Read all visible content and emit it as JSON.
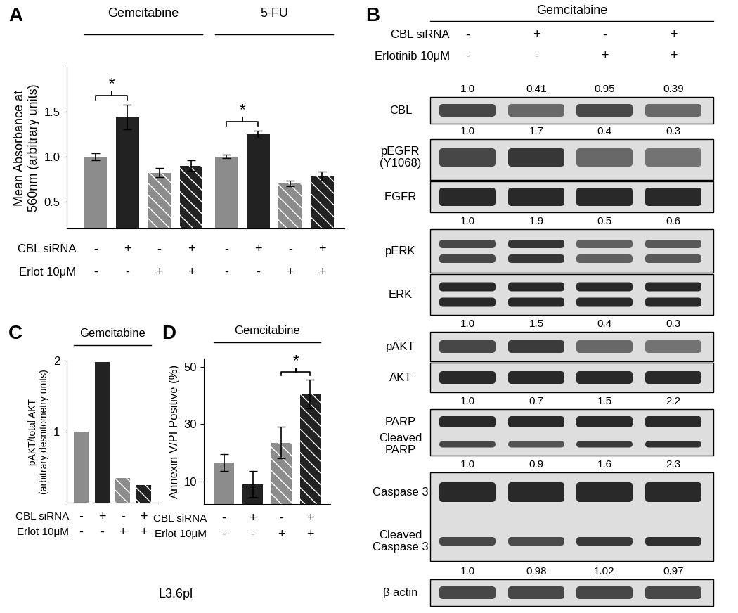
{
  "chart_data": [
    {
      "panel_label": "A",
      "type": "bar",
      "ylabel": "Mean Absorbance at\n560nm (arbitrary units)",
      "ylim": [
        0.2,
        2.0
      ],
      "yticks": [
        0.5,
        {
          "value": 1,
          "label": "1.0"
        },
        1.5
      ],
      "groups": [
        {
          "name": "Gemcitabine",
          "values": [
            1.0,
            1.44,
            0.82,
            0.9
          ],
          "errors": [
            0.04,
            0.14,
            0.05,
            0.06
          ],
          "colors": [
            "#8c8c8c",
            "#222222",
            "#8c8c8c",
            "#222222"
          ],
          "significance": {
            "between": [
              0,
              1
            ],
            "label": "*"
          }
        },
        {
          "name": "5-FU",
          "values": [
            1.0,
            1.25,
            0.7,
            0.78
          ],
          "errors": [
            0.02,
            0.04,
            0.03,
            0.05
          ],
          "colors": [
            "#8c8c8c",
            "#222222",
            "#8c8c8c",
            "#222222"
          ],
          "significance": {
            "between": [
              0,
              1
            ],
            "label": "*"
          }
        }
      ],
      "conditions": [
        {
          "label": "CBL siRNA",
          "marks": [
            "-",
            "+",
            "-",
            "+"
          ]
        },
        {
          "label": "Erlot 10μM",
          "marks": [
            "-",
            "-",
            "+",
            "+"
          ]
        }
      ]
    },
    {
      "panel_label": "C",
      "type": "bar",
      "title": "Gemcitabine",
      "ylabel": "pAKT/total AKT\n(arbitrary desnitometry units)",
      "ylim": [
        0,
        2
      ],
      "yticks": [
        1,
        2
      ],
      "values": [
        1.0,
        1.98,
        0.35,
        0.25
      ],
      "colors": [
        "#8c8c8c",
        "#222222",
        "#8c8c8c",
        "#222222"
      ],
      "conditions": [
        {
          "label": "CBL siRNA",
          "marks": [
            "-",
            "+",
            "-",
            "+"
          ]
        },
        {
          "label": "Erlot 10μM",
          "marks": [
            "-",
            "-",
            "+",
            "+"
          ]
        }
      ]
    },
    {
      "panel_label": "D",
      "type": "bar",
      "title": "Gemcitabine",
      "ylabel": "Annexin V/PI Positive (%)",
      "ylim": [
        2,
        53
      ],
      "yticks": [
        10,
        30,
        50
      ],
      "values": [
        16.5,
        9,
        23.5,
        40.5
      ],
      "errors": [
        3,
        4.5,
        5.5,
        5
      ],
      "colors": [
        "#8c8c8c",
        "#222222",
        "#8c8c8c",
        "#222222"
      ],
      "significance": {
        "between": [
          2,
          3
        ],
        "label": "*"
      },
      "conditions": [
        {
          "label": "CBL siRNA",
          "marks": [
            "-",
            "+",
            "-",
            "+"
          ]
        },
        {
          "label": "Erlot 10μM",
          "marks": [
            "-",
            "-",
            "+",
            "+"
          ]
        }
      ]
    }
  ],
  "caption": "L3.6pl",
  "blot": {
    "panel_label": "B",
    "title": "Gemcitabine",
    "conditions": [
      {
        "label": "CBL siRNA",
        "marks": [
          "-",
          "+",
          "-",
          "+"
        ]
      },
      {
        "label": "Erlotinib 10μM",
        "marks": [
          "-",
          "-",
          "+",
          "+"
        ]
      }
    ],
    "rows": [
      {
        "bands": [
          "CBL"
        ],
        "quantification": [
          1.0,
          0.41,
          0.95,
          0.39
        ]
      },
      {
        "bands": [
          "pEGFR\n(Y1068)"
        ],
        "quantification": [
          1.0,
          1.7,
          0.4,
          0.3
        ]
      },
      {
        "bands": [
          "EGFR"
        ]
      },
      {
        "bands": [
          "pERK"
        ],
        "quantification": [
          1.0,
          1.9,
          0.5,
          0.6
        ]
      },
      {
        "bands": [
          "ERK"
        ]
      },
      {
        "bands": [
          "pAKT"
        ],
        "quantification": [
          1.0,
          1.5,
          0.4,
          0.3
        ]
      },
      {
        "bands": [
          "AKT"
        ]
      },
      {
        "bands": [
          "PARP",
          "Cleaved\nPARP"
        ],
        "quantification": [
          1.0,
          0.7,
          1.5,
          2.2
        ]
      },
      {
        "bands": [
          "Caspase 3",
          "Cleaved\nCaspase 3"
        ],
        "quantification": [
          1.0,
          0.9,
          1.6,
          2.3
        ]
      },
      {
        "bands": [
          "β-actin"
        ],
        "quantification": [
          1.0,
          0.98,
          1.02,
          0.97
        ]
      }
    ]
  }
}
